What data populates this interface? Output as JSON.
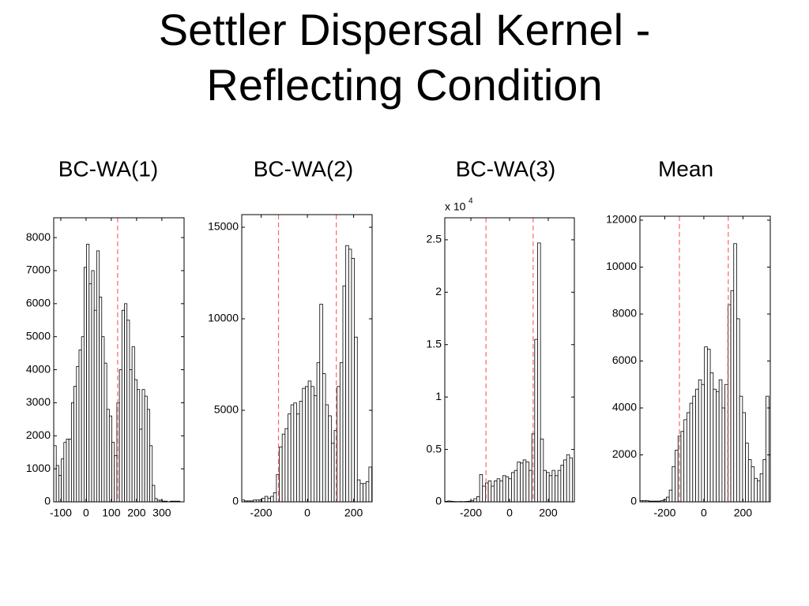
{
  "title_lines": [
    "Settler Dispersal Kernel -",
    "Reflecting Condition"
  ],
  "chart_data": [
    {
      "type": "histogram",
      "title": "BC-WA(1)",
      "color": "#ffffff",
      "edge_color": "#000000",
      "bins": [
        -128,
        -118,
        -108,
        -98,
        -88,
        -78,
        -68,
        -58,
        -48,
        -38,
        -28,
        -18,
        -8,
        2,
        12,
        22,
        32,
        42,
        52,
        62,
        72,
        82,
        92,
        102,
        112,
        122,
        132,
        142,
        152,
        162,
        172,
        182,
        192,
        202,
        212,
        222,
        232,
        242,
        252,
        262,
        272,
        282,
        292,
        302,
        312,
        322,
        332,
        342,
        352,
        362,
        372
      ],
      "counts": [
        1700,
        1100,
        800,
        1300,
        1800,
        1900,
        1900,
        3000,
        3500,
        4100,
        4600,
        5000,
        7100,
        7800,
        6600,
        7000,
        5800,
        7600,
        6200,
        5000,
        4200,
        2800,
        2600,
        1800,
        1400,
        3000,
        4000,
        5800,
        6000,
        5500,
        4000,
        4700,
        3700,
        3400,
        2200,
        3400,
        3200,
        2800,
        1700,
        500,
        100,
        50,
        50,
        20,
        20,
        0,
        20,
        20,
        20,
        20
      ],
      "xlim": [
        -128,
        388
      ],
      "ylim": [
        0,
        8600
      ],
      "xticks": [
        -100,
        0,
        100,
        200,
        300
      ],
      "yticks": [
        0,
        1000,
        2000,
        3000,
        4000,
        5000,
        6000,
        7000,
        8000
      ],
      "vlines": [
        125
      ],
      "vline_color": "#ff6666"
    },
    {
      "type": "histogram",
      "title": "BC-WA(2)",
      "color": "#ffffff",
      "edge_color": "#000000",
      "bins": [
        -284,
        -271.5,
        -259,
        -246.5,
        -234,
        -221.5,
        -209,
        -196.5,
        -184,
        -171.5,
        -159,
        -146.5,
        -134,
        -121.5,
        -109,
        -96.5,
        -84,
        -71.5,
        -59,
        -46.5,
        -34,
        -21.5,
        -9,
        3.5,
        16,
        28.5,
        41,
        53.5,
        66,
        78.5,
        91,
        103.5,
        116,
        128.5,
        141,
        153.5,
        166,
        178.5,
        191,
        203.5,
        216,
        228.5,
        241,
        253.5,
        266,
        278.5
      ],
      "counts": [
        100,
        50,
        50,
        50,
        100,
        100,
        100,
        200,
        300,
        200,
        300,
        500,
        1500,
        3000,
        3700,
        4000,
        4800,
        5300,
        5400,
        4800,
        5500,
        6200,
        6300,
        6600,
        6300,
        5800,
        7600,
        10800,
        7000,
        5300,
        4700,
        3200,
        3900,
        6300,
        7600,
        11800,
        14000,
        13800,
        13300,
        9000,
        1200,
        1000,
        1000,
        1100,
        1900
      ],
      "xlim": [
        -284,
        280
      ],
      "ylim": [
        0,
        15690
      ],
      "xticks": [
        -200,
        0,
        200
      ],
      "yticks": [
        0,
        5000,
        10000,
        15000
      ],
      "vlines": [
        -125,
        125
      ],
      "vline_color": "#ff6666"
    },
    {
      "type": "histogram",
      "title": "BC-WA(3)",
      "color": "#ffffff",
      "edge_color": "#000000",
      "y_scale_base": "x 10",
      "y_scale_exponent": "4",
      "bins": [
        -335,
        -320,
        -305,
        -290,
        -275,
        -260,
        -245,
        -230,
        -215,
        -200,
        -185,
        -170,
        -155,
        -140,
        -125,
        -110,
        -95,
        -80,
        -65,
        -50,
        -35,
        -20,
        -5,
        10,
        25,
        40,
        55,
        70,
        85,
        100,
        115,
        130,
        145,
        160,
        175,
        190,
        205,
        220,
        235,
        250,
        265,
        280,
        295,
        310,
        325
      ],
      "counts": [
        0.005,
        0.008,
        0.005,
        0.003,
        0.002,
        0.003,
        0.002,
        0.004,
        0.006,
        0.01,
        0.03,
        0.05,
        0.26,
        0.15,
        0.18,
        0.2,
        0.15,
        0.2,
        0.22,
        0.2,
        0.25,
        0.24,
        0.22,
        0.28,
        0.3,
        0.38,
        0.37,
        0.4,
        0.38,
        0.3,
        0.65,
        1.55,
        2.47,
        0.6,
        0.3,
        0.28,
        0.25,
        0.3,
        0.25,
        0.3,
        0.35,
        0.4,
        0.45,
        0.42
      ],
      "xlim": [
        -335,
        335
      ],
      "ylim": [
        0,
        2.71
      ],
      "xticks": [
        -200,
        0,
        200
      ],
      "yticks": [
        0,
        0.5,
        1,
        1.5,
        2,
        2.5
      ],
      "vlines": [
        -122,
        122
      ],
      "vline_color": "#ff6666"
    },
    {
      "type": "histogram",
      "title": "Mean",
      "color": "#ffffff",
      "edge_color": "#000000",
      "bins": [
        -327,
        -312,
        -297,
        -282,
        -267,
        -252,
        -237,
        -222,
        -207,
        -192,
        -177,
        -162,
        -147,
        -132,
        -117,
        -102,
        -87,
        -72,
        -57,
        -42,
        -27,
        -12,
        3,
        18,
        33,
        48,
        63,
        78,
        93,
        108,
        123,
        138,
        153,
        168,
        183,
        198,
        213,
        228,
        243,
        258,
        273,
        288,
        303,
        318,
        333
      ],
      "counts": [
        50,
        50,
        50,
        30,
        30,
        30,
        30,
        50,
        100,
        200,
        500,
        1500,
        2200,
        2800,
        3000,
        3500,
        3800,
        4200,
        4500,
        4800,
        5200,
        5000,
        6600,
        6500,
        5500,
        4800,
        4700,
        5200,
        4000,
        5000,
        8400,
        9000,
        11000,
        7800,
        4500,
        3800,
        2500,
        1800,
        1500,
        1000,
        900,
        1200,
        1800,
        4500
      ],
      "xlim": [
        -327,
        340
      ],
      "ylim": [
        0,
        12168
      ],
      "xticks": [
        -200,
        0,
        200
      ],
      "yticks": [
        0,
        2000,
        4000,
        6000,
        8000,
        10000,
        12000
      ],
      "vlines": [
        -125,
        125
      ],
      "vline_color": "#ff6666"
    }
  ]
}
